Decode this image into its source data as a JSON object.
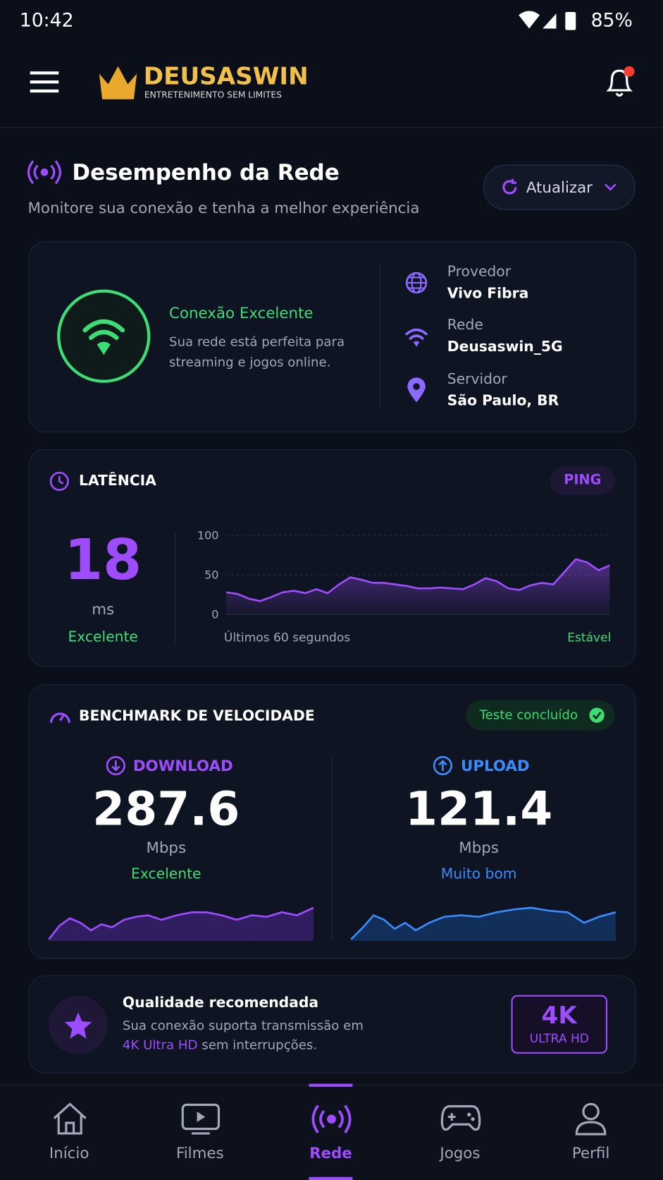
{
  "status_bar": {
    "time": "10:42",
    "battery": "85%"
  },
  "header": {
    "brand": "DEUSASWIN",
    "tagline": "ENTRETENIMENTO SEM LIMITES"
  },
  "section": {
    "title": "Desempenho da Rede",
    "subtitle": "Monitore sua conexão e tenha a melhor experiência",
    "refresh": "Atualizar"
  },
  "connection": {
    "status": "Conexão Excelente",
    "description": "Sua rede está perfeita para streaming e jogos online.",
    "provider_label": "Provedor",
    "provider": "Vivo Fibra",
    "network_label": "Rede",
    "network": "Deusaswin_5G",
    "server_label": "Servidor",
    "server": "São Paulo, BR"
  },
  "latency": {
    "title": "LATÊNCIA",
    "badge": "PING",
    "value": "18",
    "unit": "ms",
    "rating": "Excelente",
    "chart": {
      "type": "line",
      "ylim": [
        0,
        100
      ],
      "yticks": [
        0,
        50,
        100
      ],
      "values": [
        28,
        26,
        20,
        17,
        22,
        28,
        30,
        27,
        32,
        27,
        38,
        47,
        44,
        40,
        40,
        38,
        36,
        33,
        33,
        34,
        33,
        32,
        38,
        46,
        42,
        33,
        31,
        37,
        40,
        38,
        54,
        70,
        66,
        56,
        62
      ],
      "color": "#9d4dff",
      "caption_left": "Últimos 60 segundos",
      "caption_right": "Estável"
    }
  },
  "benchmark": {
    "title": "BENCHMARK DE VELOCIDADE",
    "status": "Teste concluído",
    "download": {
      "label": "DOWNLOAD",
      "value": "287.6",
      "unit": "Mbps",
      "rating": "Excelente"
    },
    "upload": {
      "label": "UPLOAD",
      "value": "121.4",
      "unit": "Mbps",
      "rating": "Muito bom"
    }
  },
  "quality": {
    "title": "Qualidade recomendada",
    "text_before": "Sua conexão suporta transmissão em",
    "highlight": "4K Ultra HD",
    "text_after": "sem interrupções.",
    "badge_big": "4K",
    "badge_small": "ULTRA HD"
  },
  "nav": [
    "Início",
    "Filmes",
    "Rede",
    "Jogos",
    "Perfil"
  ]
}
